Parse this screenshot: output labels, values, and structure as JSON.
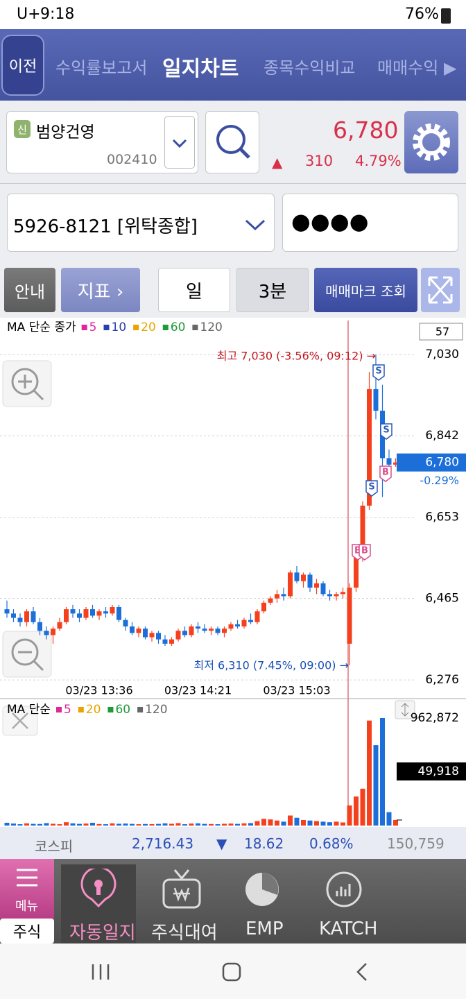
{
  "status_bar": {
    "carrier": "U+",
    "time": "9:18",
    "battery": "76%"
  },
  "tabs": {
    "back": "이전",
    "items": [
      "수익률보고서",
      "일지차트",
      "종목수익비교",
      "매매수익 ▶"
    ]
  },
  "stock": {
    "badge": "신",
    "name": "범양건영",
    "code": "002410",
    "price": "6,780",
    "change_arrow": "▲",
    "change": "310",
    "change_rate": "4.79%"
  },
  "account": {
    "number": "5926-8121 [위탁종합]",
    "password": "●●●●"
  },
  "toolbar": {
    "guide": "안내",
    "indicator": "지표 ›",
    "period": "일",
    "interval": "3분",
    "trade_marks": "매매마크 조회"
  },
  "chart_data": [
    {
      "type": "candlestick",
      "legend_title": "MA 단순 종가",
      "ma_legend": [
        {
          "name": "5",
          "color": "#e0279a"
        },
        {
          "name": "10",
          "color": "#2a3fb0"
        },
        {
          "name": "20",
          "color": "#e8a400"
        },
        {
          "name": "60",
          "color": "#1e9a3a"
        },
        {
          "name": "120",
          "color": "#666666"
        }
      ],
      "categories": [
        null,
        null,
        null,
        null,
        null,
        null,
        null,
        null,
        null,
        null,
        null,
        null,
        null,
        null,
        "03/23 13:36",
        null,
        null,
        null,
        null,
        null,
        null,
        null,
        null,
        null,
        null,
        null,
        null,
        null,
        null,
        "03/23 14:21",
        null,
        null,
        null,
        null,
        null,
        null,
        null,
        null,
        null,
        null,
        null,
        null,
        null,
        null,
        "03/23 15:03",
        null,
        null,
        null,
        null,
        null,
        null,
        null,
        null,
        null,
        null,
        null,
        null,
        null,
        null,
        null
      ],
      "open": [
        6440,
        6430,
        6420,
        6410,
        6435,
        6410,
        6390,
        6380,
        6395,
        6410,
        6440,
        6430,
        6420,
        6440,
        6425,
        6435,
        6430,
        6445,
        6415,
        6400,
        6385,
        6395,
        6375,
        6385,
        6370,
        6360,
        6370,
        6390,
        6380,
        6400,
        6395,
        6390,
        6395,
        6385,
        6395,
        6405,
        6400,
        6415,
        6410,
        6435,
        6455,
        6465,
        6475,
        6470,
        6525,
        6505,
        6520,
        6490,
        6500,
        6475,
        6470,
        6475,
        6360,
        6490,
        6560,
        6680,
        6950,
        6900,
        6790,
        6775
      ],
      "high": [
        6460,
        6440,
        6430,
        6440,
        6445,
        6420,
        6400,
        6400,
        6420,
        6445,
        6450,
        6440,
        6445,
        6450,
        6440,
        6445,
        6450,
        6450,
        6420,
        6410,
        6400,
        6400,
        6390,
        6390,
        6380,
        6375,
        6395,
        6400,
        6405,
        6410,
        6405,
        6400,
        6400,
        6400,
        6410,
        6415,
        6420,
        6430,
        6440,
        6460,
        6470,
        6485,
        6490,
        6530,
        6540,
        6525,
        6525,
        6510,
        6505,
        6485,
        6480,
        6490,
        6500,
        6570,
        6690,
        6990,
        7030,
        6960,
        6810,
        6790
      ],
      "low": [
        6420,
        6410,
        6400,
        6400,
        6405,
        6380,
        6370,
        6360,
        6390,
        6405,
        6420,
        6410,
        6415,
        6420,
        6415,
        6420,
        6425,
        6410,
        6390,
        6380,
        6375,
        6370,
        6365,
        6360,
        6355,
        6355,
        6365,
        6375,
        6375,
        6385,
        6385,
        6380,
        6380,
        6375,
        6390,
        6395,
        6395,
        6405,
        6405,
        6430,
        6450,
        6455,
        6460,
        6465,
        6500,
        6490,
        6480,
        6475,
        6470,
        6460,
        6460,
        6465,
        6310,
        6480,
        6550,
        6670,
        6880,
        6700,
        6760,
        6770
      ],
      "close": [
        6430,
        6420,
        6410,
        6435,
        6410,
        6390,
        6380,
        6395,
        6410,
        6440,
        6430,
        6420,
        6440,
        6425,
        6435,
        6430,
        6445,
        6415,
        6400,
        6385,
        6395,
        6375,
        6385,
        6370,
        6360,
        6370,
        6390,
        6380,
        6400,
        6395,
        6390,
        6395,
        6385,
        6395,
        6405,
        6400,
        6415,
        6410,
        6435,
        6455,
        6465,
        6475,
        6470,
        6525,
        6505,
        6520,
        6490,
        6500,
        6475,
        6470,
        6475,
        6480,
        6490,
        6560,
        6680,
        6950,
        6900,
        6790,
        6775,
        6780
      ],
      "up_color": "#f5401e",
      "down_color": "#1c6fd9",
      "ylim": [
        6236,
        7109
      ],
      "yticks": [
        {
          "value": 6276,
          "label": "6,276"
        },
        {
          "value": 6465,
          "label": "6,465"
        },
        {
          "value": 6653,
          "label": "6,653"
        },
        {
          "value": 6842,
          "label": "6,842"
        },
        {
          "value": 7030,
          "label": "7,030"
        }
      ],
      "grid": true,
      "count_box": "57",
      "current": {
        "value": 6780,
        "label": "6,780"
      },
      "current_change": "-0.29%",
      "annotations": [
        "최고 7,030 (-3.56%, 09:12) →",
        "최저 6,310 (7.45%, 09:00) →"
      ],
      "trade_marks": [
        "S",
        "S",
        "S",
        "B",
        "B",
        "B"
      ]
    },
    {
      "type": "bar",
      "legend_title": "MA 단순",
      "ma_legend": [
        {
          "name": "5",
          "color": "#e0279a"
        },
        {
          "name": "20",
          "color": "#e8a400"
        },
        {
          "name": "60",
          "color": "#1e9a3a"
        },
        {
          "name": "120",
          "color": "#666666"
        }
      ],
      "values": [
        25000,
        18000,
        12000,
        20000,
        15000,
        14000,
        22000,
        16000,
        12000,
        30000,
        20000,
        15000,
        18000,
        25000,
        14000,
        12000,
        20000,
        16000,
        18000,
        15000,
        12000,
        14000,
        13000,
        15000,
        20000,
        16000,
        22000,
        12000,
        18000,
        20000,
        15000,
        14000,
        12000,
        16000,
        18000,
        15000,
        20000,
        22000,
        40000,
        60000,
        55000,
        45000,
        35000,
        90000,
        70000,
        50000,
        45000,
        40000,
        35000,
        30000,
        35000,
        28000,
        180000,
        260000,
        330000,
        940000,
        720000,
        962872,
        120000,
        49918
      ],
      "ylim": [
        0,
        1000000
      ],
      "yticks": [
        {
          "value": 962872,
          "label": "962,872"
        }
      ],
      "current": {
        "value": 49918,
        "label": "49,918"
      }
    }
  ],
  "index_bar": {
    "name": "코스피",
    "value": "2,716.43",
    "arrow": "▼",
    "change": "18.62",
    "rate": "0.68%",
    "volume": "150,759"
  },
  "bottom_menu": {
    "menu": "메뉴",
    "section": "주식",
    "items": [
      "자동일지",
      "주식대여",
      "EMP",
      "KATCH"
    ]
  }
}
